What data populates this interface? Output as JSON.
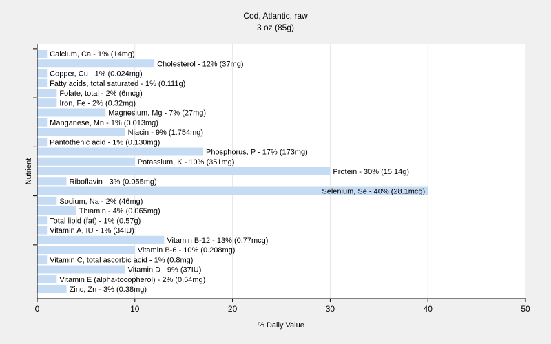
{
  "chart_data": {
    "type": "bar",
    "orientation": "horizontal",
    "title": "Cod, Atlantic, raw",
    "subtitle": "3 oz (85g)",
    "xlabel": "% Daily Value",
    "ylabel": "Nutrient",
    "xlim": [
      0,
      50
    ],
    "xticks": [
      0,
      10,
      20,
      30,
      40,
      50
    ],
    "grid": true,
    "bar_color": "#c6dcf5",
    "categories": [
      "Calcium, Ca",
      "Cholesterol",
      "Copper, Cu",
      "Fatty acids, total saturated",
      "Folate, total",
      "Iron, Fe",
      "Magnesium, Mg",
      "Manganese, Mn",
      "Niacin",
      "Pantothenic acid",
      "Phosphorus, P",
      "Potassium, K",
      "Protein",
      "Riboflavin",
      "Selenium, Se",
      "Sodium, Na",
      "Thiamin",
      "Total lipid (fat)",
      "Vitamin A, IU",
      "Vitamin B-12",
      "Vitamin B-6",
      "Vitamin C, total ascorbic acid",
      "Vitamin D",
      "Vitamin E (alpha-tocopherol)",
      "Zinc, Zn"
    ],
    "values": [
      1,
      12,
      1,
      1,
      2,
      2,
      7,
      1,
      9,
      1,
      17,
      10,
      30,
      3,
      40,
      2,
      4,
      1,
      1,
      13,
      10,
      1,
      9,
      2,
      3
    ],
    "labels": [
      "Calcium, Ca - 1% (14mg)",
      "Cholesterol - 12% (37mg)",
      "Copper, Cu - 1% (0.024mg)",
      "Fatty acids, total saturated - 1% (0.111g)",
      "Folate, total - 2% (6mcg)",
      "Iron, Fe - 2% (0.32mg)",
      "Magnesium, Mg - 7% (27mg)",
      "Manganese, Mn - 1% (0.013mg)",
      "Niacin - 9% (1.754mg)",
      "Pantothenic acid - 1% (0.130mg)",
      "Phosphorus, P - 17% (173mg)",
      "Potassium, K - 10% (351mg)",
      "Protein - 30% (15.14g)",
      "Riboflavin - 3% (0.055mg)",
      "Selenium, Se - 40% (28.1mcg)",
      "Sodium, Na - 2% (46mg)",
      "Thiamin - 4% (0.065mg)",
      "Total lipid (fat) - 1% (0.57g)",
      "Vitamin A, IU - 1% (34IU)",
      "Vitamin B-12 - 13% (0.77mcg)",
      "Vitamin B-6 - 10% (0.208mg)",
      "Vitamin C, total ascorbic acid - 1% (0.8mg)",
      "Vitamin D - 9% (37IU)",
      "Vitamin E (alpha-tocopherol) - 2% (0.54mg)",
      "Zinc, Zn - 3% (0.38mg)"
    ]
  }
}
